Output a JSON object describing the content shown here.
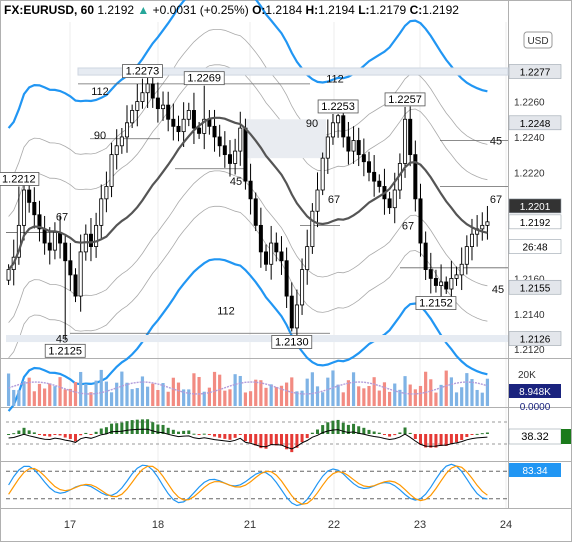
{
  "header": {
    "symbol": "FX:EURUSD, 60",
    "last": "1.2192",
    "change_arrow": "▲",
    "change": "+0.0031 (+0.25%)",
    "open_label": "O:",
    "open": "1.2184",
    "high_label": "H:",
    "high": "1.2194",
    "low_label": "L:",
    "low": "1.2179",
    "close_label": "C:",
    "close": "1.2192"
  },
  "currency_button": "USD",
  "colors": {
    "up": "#26a69a",
    "down": "#ef5350",
    "candle": "#000000",
    "ma": "#555555",
    "band": "#aaaaaa",
    "band_blue": "#2196f3",
    "vol_up": "#7fb3e5",
    "vol_down": "#f28b82",
    "vol_ma": "#b39ddb",
    "stoch_k": "#2196f3",
    "stoch_d": "#ff9800",
    "macd_line": "#000000"
  },
  "chart_data": [
    {
      "type": "candlestick",
      "title": "EURUSD 60",
      "price_axis_ticks": [
        "1.2260",
        "1.2240",
        "1.2220",
        "1.2180",
        "1.2160",
        "1.2140",
        "1.2120"
      ],
      "x_tick_labels": [
        "17",
        "18",
        "21",
        "22",
        "23",
        "24"
      ],
      "ylim": [
        1.2115,
        1.2305
      ],
      "closes": [
        1.2165,
        1.2172,
        1.219,
        1.221,
        1.2203,
        1.2196,
        1.2188,
        1.218,
        1.2176,
        1.2186,
        1.218,
        1.217,
        1.2162,
        1.215,
        1.2175,
        1.2185,
        1.2178,
        1.219,
        1.2205,
        1.2212,
        1.223,
        1.2235,
        1.224,
        1.2248,
        1.2255,
        1.226,
        1.2265,
        1.227,
        1.2262,
        1.2256,
        1.2258,
        1.225,
        1.2246,
        1.2243,
        1.225,
        1.2255,
        1.2245,
        1.2242,
        1.225,
        1.2246,
        1.224,
        1.2235,
        1.223,
        1.2225,
        1.2232,
        1.2245,
        1.2215,
        1.2205,
        1.219,
        1.2175,
        1.2168,
        1.218,
        1.2175,
        1.217,
        1.215,
        1.2132,
        1.2145,
        1.2165,
        1.2178,
        1.2198,
        1.221,
        1.2228,
        1.224,
        1.2248,
        1.2252,
        1.224,
        1.2232,
        1.2238,
        1.223,
        1.2226,
        1.222,
        1.2215,
        1.2212,
        1.2205,
        1.22,
        1.221,
        1.2225,
        1.225,
        1.223,
        1.2205,
        1.218,
        1.2165,
        1.216,
        1.2156,
        1.2158,
        1.2154,
        1.216,
        1.2162,
        1.2168,
        1.2178,
        1.2185,
        1.2188,
        1.219,
        1.2192
      ],
      "price_labels": [
        {
          "text": "1.2212",
          "price": 1.2212,
          "idx": 2
        },
        {
          "text": "1.2273",
          "price": 1.2273,
          "idx": 26
        },
        {
          "text": "1.2269",
          "price": 1.2269,
          "idx": 38
        },
        {
          "text": "1.2253",
          "price": 1.2253,
          "idx": 64
        },
        {
          "text": "1.2257",
          "price": 1.2257,
          "idx": 77
        },
        {
          "text": "1.2125",
          "price": 1.2125,
          "idx": 11
        },
        {
          "text": "1.2130",
          "price": 1.213,
          "idx": 55
        },
        {
          "text": "1.2152",
          "price": 1.2152,
          "idx": 83
        }
      ],
      "fib_labels": [
        "112",
        "90",
        "67",
        "45",
        "112",
        "90",
        "67",
        "45",
        "67",
        "45",
        "67",
        "45",
        "112"
      ],
      "right_badges": [
        {
          "text": "1.2277",
          "price": 1.2277
        },
        {
          "text": "1.2248",
          "price": 1.2248
        },
        {
          "text": "1.2201",
          "price": 1.2201
        },
        {
          "text": "1.2192",
          "price": 1.2192
        },
        {
          "text": "26:48",
          "price": 1.2178
        },
        {
          "text": "1.2155",
          "price": 1.2155
        },
        {
          "text": "1.2126",
          "price": 1.2126
        }
      ]
    },
    {
      "type": "bar",
      "title": "Volume",
      "axis_tick": "20K",
      "last_value": "8.948K",
      "hidden_value": "0.0000"
    },
    {
      "type": "bar",
      "title": "MACD histogram",
      "last_value": "38.32"
    },
    {
      "type": "line",
      "title": "Stochastic",
      "last_value": "83.34",
      "levels": [
        80,
        20
      ]
    }
  ]
}
